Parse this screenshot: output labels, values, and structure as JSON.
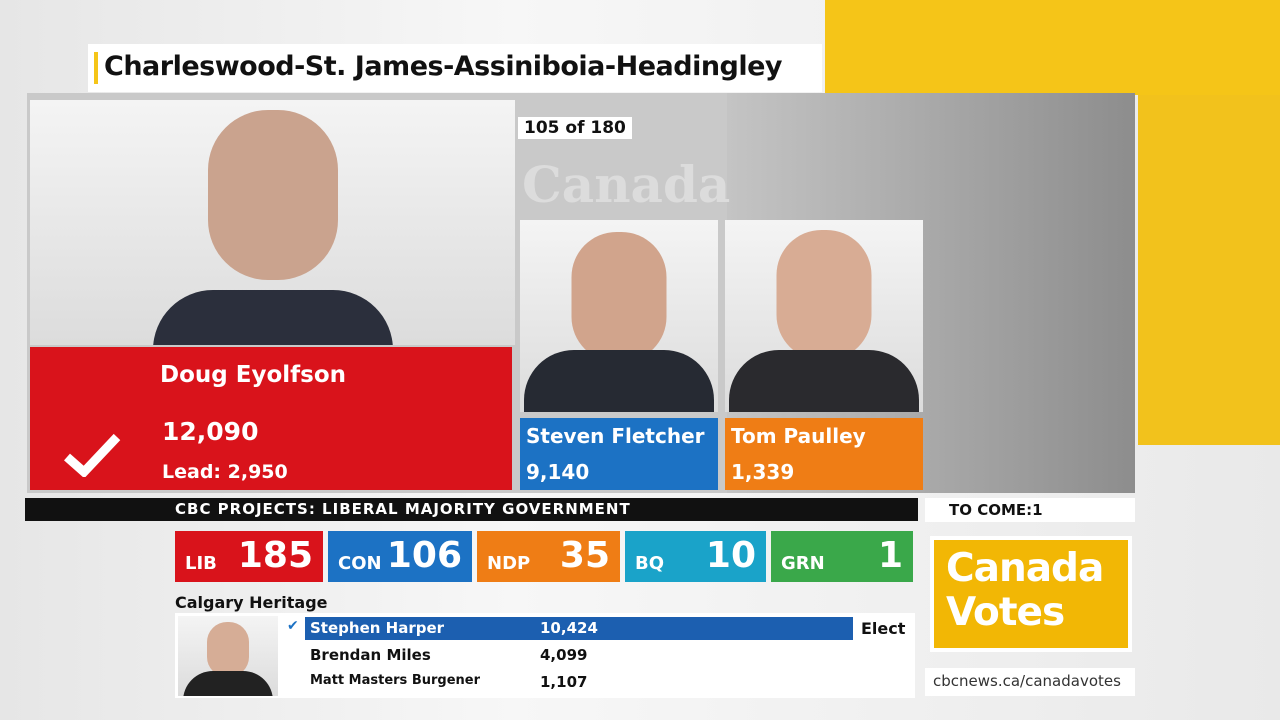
{
  "header": {
    "title": "Charleswood-St. James-Assiniboia-Headingley"
  },
  "race": {
    "polls": "105 of 180",
    "region": "Canada",
    "winner": {
      "name": "Doug Eyolfson",
      "votes": "12,090",
      "lead": "Lead: 2,950"
    },
    "candidates": [
      {
        "name": "Steven Fletcher",
        "votes": "9,140"
      },
      {
        "name": "Tom Paulley",
        "votes": "1,339"
      }
    ]
  },
  "ticker": {
    "text": "CBC PROJECTS: LIBERAL MAJORITY GOVERNMENT",
    "to_come": "TO COME:1"
  },
  "seats": [
    {
      "party": "LIB",
      "seats": 185
    },
    {
      "party": "CON",
      "seats": 106
    },
    {
      "party": "NDP",
      "seats": 35
    },
    {
      "party": "BQ",
      "seats": 10
    },
    {
      "party": "GRN",
      "seats": 1
    }
  ],
  "secondary": {
    "riding": "Calgary Heritage",
    "rows": [
      {
        "name": "Stephen Harper",
        "votes": "10,424",
        "status": "Elect"
      },
      {
        "name": "Brendan Miles",
        "votes": "4,099"
      },
      {
        "name": "Matt Masters Burgener",
        "votes": "1,107"
      }
    ]
  },
  "brand": {
    "line1": "Canada",
    "line2": "Votes",
    "url": "cbcnews.ca/canadavotes"
  }
}
